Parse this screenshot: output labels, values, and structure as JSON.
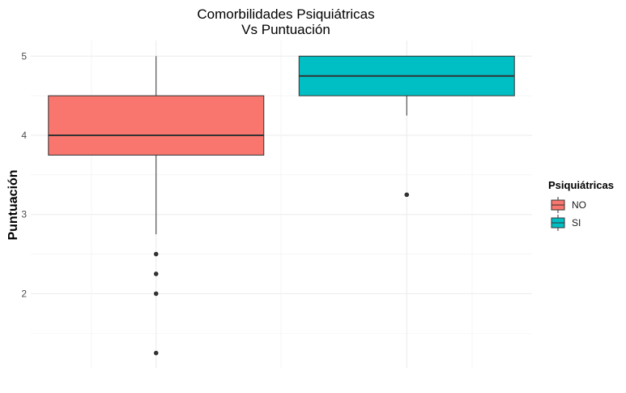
{
  "chart_data": {
    "type": "boxplot",
    "title_lines": [
      "Comorbilidades Psiquiátricas",
      "Vs Puntuación"
    ],
    "xlabel": "",
    "ylabel": "Puntuación",
    "ylim": [
      1.2,
      5.1
    ],
    "yticks": [
      2,
      3,
      4,
      5
    ],
    "grid": true,
    "legend": {
      "title": "Psiquiátricas",
      "position": "right",
      "entries": [
        {
          "label": "NO",
          "color": "#F8766D"
        },
        {
          "label": "SI",
          "color": "#00BFC4"
        }
      ]
    },
    "series": [
      {
        "name": "NO",
        "color": "#F8766D",
        "q1": 3.75,
        "median": 4.0,
        "q3": 4.5,
        "whisker_low": 2.75,
        "whisker_high": 5.0,
        "outliers": [
          2.5,
          2.25,
          2.0,
          1.25
        ]
      },
      {
        "name": "SI",
        "color": "#00BFC4",
        "q1": 4.5,
        "median": 4.75,
        "q3": 5.0,
        "whisker_low": 4.25,
        "whisker_high": 5.0,
        "outliers": [
          3.25
        ]
      }
    ]
  }
}
